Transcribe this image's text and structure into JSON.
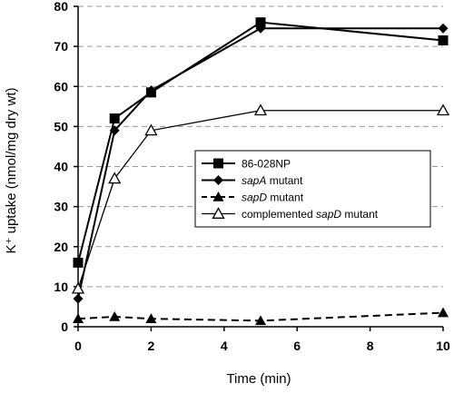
{
  "chart_data": {
    "type": "line",
    "xlabel": "Time (min)",
    "ylabel": "K⁺ uptake (nmol/mg dry wt)",
    "xlim": [
      0,
      10
    ],
    "ylim": [
      0,
      80
    ],
    "x_ticks": [
      "0",
      "2",
      "4",
      "6",
      "8",
      "10"
    ],
    "y_ticks": [
      "0",
      "10",
      "20",
      "30",
      "40",
      "50",
      "60",
      "70",
      "80"
    ],
    "grid": "horizontal dashed",
    "legend_position": "center-right",
    "series": [
      {
        "name": "86-028NP",
        "x": [
          0,
          1,
          2,
          5,
          10
        ],
        "y": [
          16,
          52,
          58.5,
          76,
          71.5
        ],
        "marker": "square",
        "line": "solid",
        "color": "#000000"
      },
      {
        "name": "sapA mutant",
        "name_prefix": "",
        "name_italic": "sapA",
        "name_suffix": " mutant",
        "x": [
          0,
          1,
          2,
          5,
          10
        ],
        "y": [
          7,
          49,
          59,
          74.5,
          74.5
        ],
        "marker": "diamond",
        "line": "solid",
        "color": "#000000"
      },
      {
        "name": "sapD mutant",
        "name_prefix": "",
        "name_italic": "sapD",
        "name_suffix": " mutant",
        "x": [
          0,
          1,
          2,
          5,
          10
        ],
        "y": [
          2,
          2.5,
          2,
          1.5,
          3.5
        ],
        "marker": "triangle",
        "line": "dashed",
        "color": "#000000"
      },
      {
        "name": "complemented sapD mutant",
        "name_prefix": "complemented ",
        "name_italic": "sapD",
        "name_suffix": " mutant",
        "x": [
          0,
          1,
          2,
          5,
          10
        ],
        "y": [
          9.5,
          37,
          49,
          54,
          54
        ],
        "marker": "triangle-open",
        "line": "solid",
        "color": "#000000"
      }
    ]
  }
}
